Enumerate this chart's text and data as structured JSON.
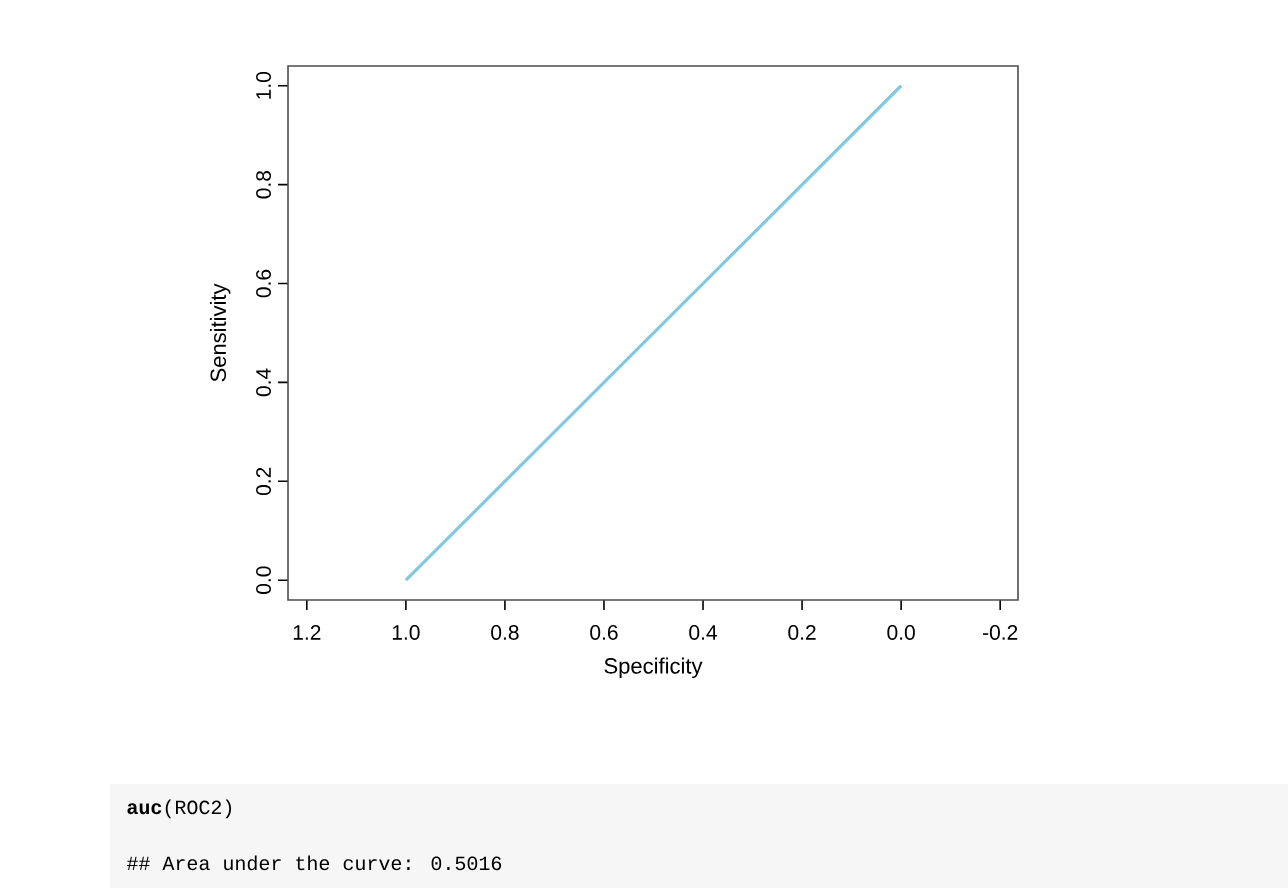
{
  "chart_data": {
    "type": "line",
    "xlabel": "Specificity",
    "ylabel": "Sensitivity",
    "xlim": [
      1.238,
      -0.236
    ],
    "ylim": [
      -0.04,
      1.04
    ],
    "xticks": [
      {
        "value": 1.2,
        "label": "1.2"
      },
      {
        "value": 1.0,
        "label": "1.0"
      },
      {
        "value": 0.8,
        "label": "0.8"
      },
      {
        "value": 0.6,
        "label": "0.6"
      },
      {
        "value": 0.4,
        "label": "0.4"
      },
      {
        "value": 0.2,
        "label": "0.2"
      },
      {
        "value": 0.0,
        "label": "0.0"
      },
      {
        "value": -0.2,
        "label": "-0.2"
      }
    ],
    "yticks": [
      {
        "value": 0.0,
        "label": "0.0"
      },
      {
        "value": 0.2,
        "label": "0.2"
      },
      {
        "value": 0.4,
        "label": "0.4"
      },
      {
        "value": 0.6,
        "label": "0.6"
      },
      {
        "value": 0.8,
        "label": "0.8"
      },
      {
        "value": 1.0,
        "label": "1.0"
      }
    ],
    "series": [
      {
        "color": "#80c8e4",
        "x": [
          1.0,
          0.5,
          0.0
        ],
        "values": [
          0.0,
          0.5,
          1.0
        ]
      }
    ],
    "annotations": [
      "**auc**(ROC2)",
      "## Area under the curve: 0.5016"
    ]
  }
}
